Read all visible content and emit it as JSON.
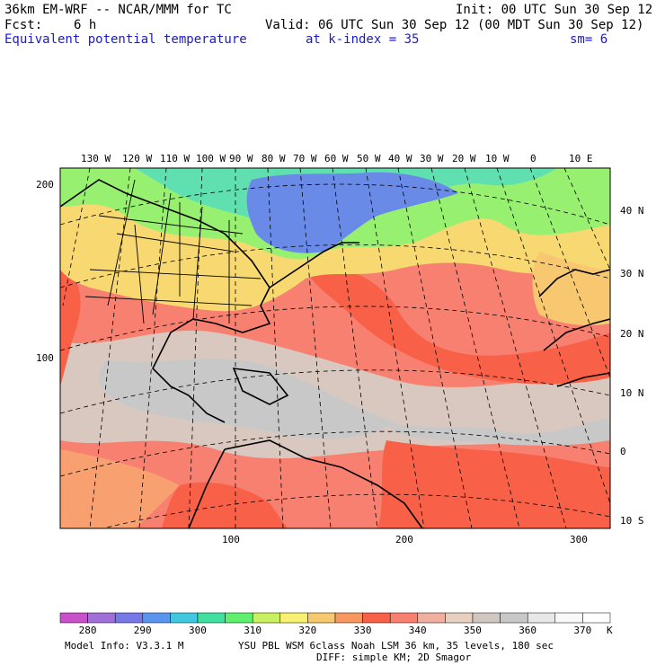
{
  "header": {
    "model": "36km EM-WRF -- NCAR/MMM for TC",
    "init": "Init: 00 UTC Sun 30 Sep 12",
    "fcst_label": "Fcst:",
    "fcst_value": "6 h",
    "valid": "Valid: 06 UTC Sun 30 Sep 12 (00 MDT Sun 30 Sep 12)",
    "field": "Equivalent potential temperature",
    "level": "at k-index =  35",
    "smoothing": "sm= 6"
  },
  "axes": {
    "top_lon_labels": [
      "130 W",
      "120 W",
      "110 W",
      "100 W",
      "90 W",
      "80 W",
      "70 W",
      "60 W",
      "50 W",
      "40 W",
      "30 W",
      "20 W",
      "10 W",
      "0",
      "10 E"
    ],
    "right_lat_labels": [
      "40 N",
      "30 N",
      "20 N",
      "10 N",
      "0",
      "10 S"
    ],
    "left_grid_labels": [
      "200",
      "100"
    ],
    "bottom_grid_labels": [
      "100",
      "200",
      "300"
    ]
  },
  "colorbar": {
    "levels": [
      "280",
      "290",
      "300",
      "310",
      "320",
      "330",
      "340",
      "350",
      "360",
      "370"
    ],
    "unit": "K",
    "colors": [
      "#c850c8",
      "#a070d8",
      "#7878e8",
      "#5a96f0",
      "#40c8e0",
      "#40e0a0",
      "#60f070",
      "#c8f060",
      "#f8f070",
      "#f8c870",
      "#f89860",
      "#f86048",
      "#f88070",
      "#f0b0a0",
      "#e8d0c0",
      "#d0c8c0",
      "#c8c8c8",
      "#e8e8e8",
      "#f8f8f8",
      "#ffffff"
    ]
  },
  "footer": {
    "model_info": "Model Info: V3.3.1 M",
    "physics": "YSU PBL  WSM 6class  Noah LSM  36 km,   35 levels,  180 sec",
    "diffusion": "DIFF: simple KM; 2D Smagor"
  }
}
